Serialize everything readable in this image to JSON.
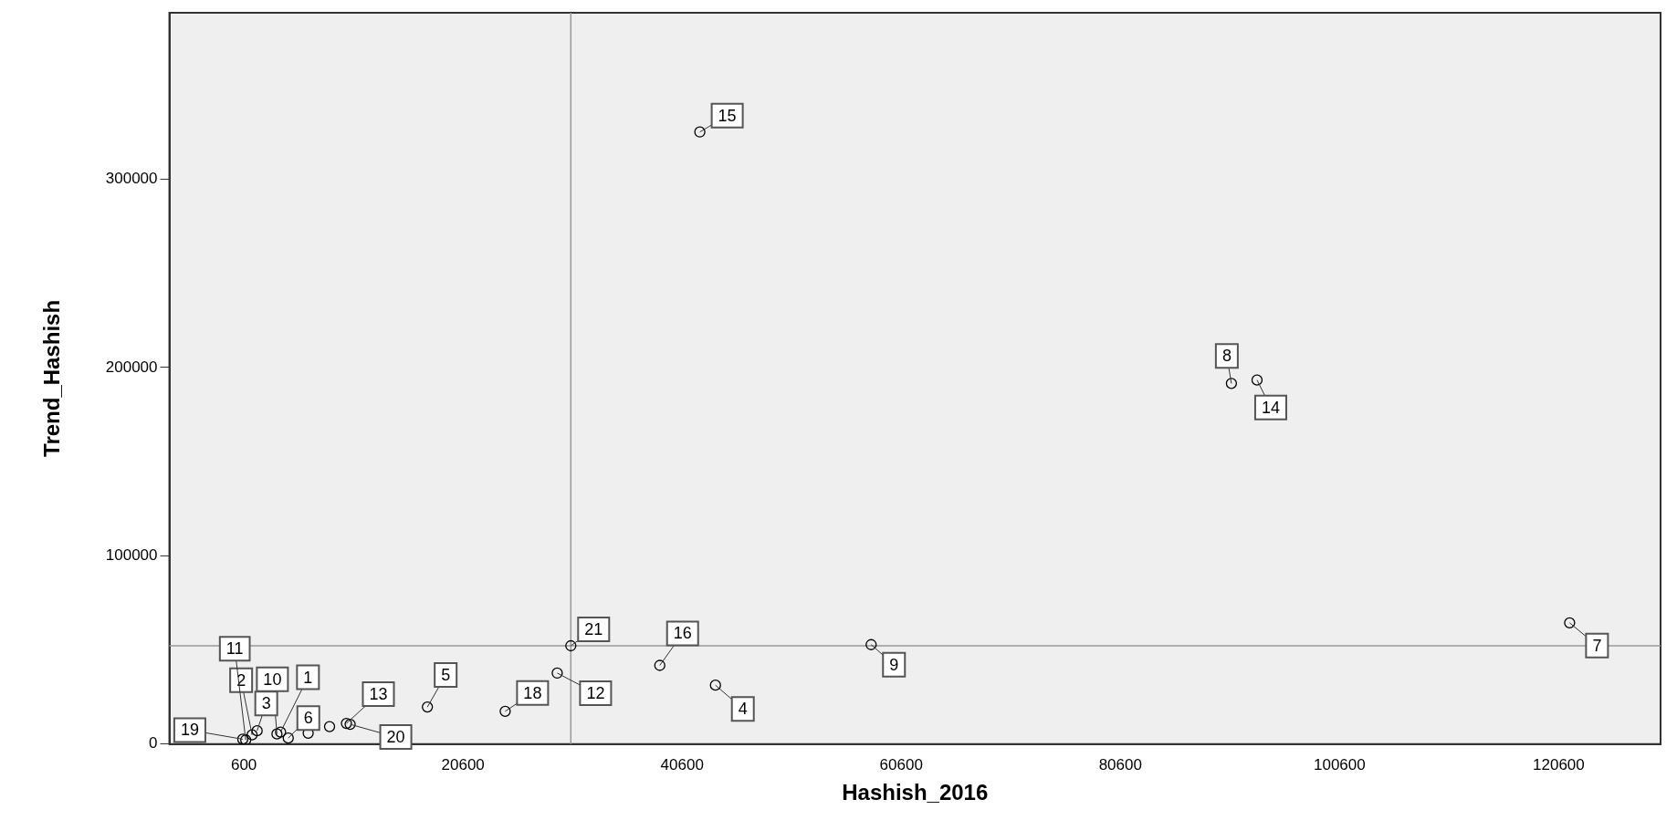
{
  "chart_data": {
    "type": "scatter",
    "xlabel": "Hashish_2016",
    "ylabel": "Trend_Hashish",
    "x": [
      42215,
      90730,
      93070,
      121600,
      57850,
      30440,
      38560,
      29200,
      43640,
      24450,
      17350,
      9960,
      10300,
      3950,
      4650,
      3620,
      1810,
      1350,
      770,
      500,
      6470,
      8420
    ],
    "series": [
      {
        "color": "#000000",
        "values": [
          325000,
          191500,
          193300,
          64400,
          52800,
          52200,
          41800,
          37700,
          31300,
          17400,
          19700,
          11000,
          10500,
          6400,
          3200,
          5400,
          7100,
          4900,
          2200,
          2600,
          5800,
          9300
        ]
      }
    ],
    "marker": "circle",
    "grid": false,
    "legend": false,
    "xlim": [
      -6200,
      129900
    ],
    "xticks": [
      600,
      20600,
      40600,
      60600,
      80600,
      100600,
      120600
    ],
    "ylim": [
      0,
      388300
    ],
    "yticks": [
      0,
      100000,
      200000,
      300000
    ],
    "ref_lines": [
      {
        "axis": "x",
        "value": 30440,
        "color": "#999999"
      },
      {
        "axis": "y",
        "value": 52200,
        "color": "#999999"
      }
    ],
    "annotations": [
      {
        "text": "15",
        "x": 42215,
        "y": 325000
      },
      {
        "text": "8",
        "x": 90730,
        "y": 191500
      },
      {
        "text": "14",
        "x": 93070,
        "y": 193300
      },
      {
        "text": "7",
        "x": 121600,
        "y": 64400
      },
      {
        "text": "9",
        "x": 57850,
        "y": 52800
      },
      {
        "text": "21",
        "x": 30440,
        "y": 52200
      },
      {
        "text": "16",
        "x": 38560,
        "y": 41800
      },
      {
        "text": "12",
        "x": 29200,
        "y": 37700
      },
      {
        "text": "4",
        "x": 43640,
        "y": 31300
      },
      {
        "text": "18",
        "x": 24450,
        "y": 17400
      },
      {
        "text": "5",
        "x": 17350,
        "y": 19700
      },
      {
        "text": "13",
        "x": 9960,
        "y": 11000
      },
      {
        "text": "20",
        "x": 10300,
        "y": 10500
      },
      {
        "text": "1",
        "x": 3950,
        "y": 6400
      },
      {
        "text": "6",
        "x": 4650,
        "y": 3200
      },
      {
        "text": "10",
        "x": 3620,
        "y": 5400
      },
      {
        "text": "3",
        "x": 1810,
        "y": 7100
      },
      {
        "text": "2",
        "x": 1350,
        "y": 4900
      },
      {
        "text": "11",
        "x": 770,
        "y": 2200
      },
      {
        "text": "19",
        "x": 500,
        "y": 2600
      }
    ]
  }
}
